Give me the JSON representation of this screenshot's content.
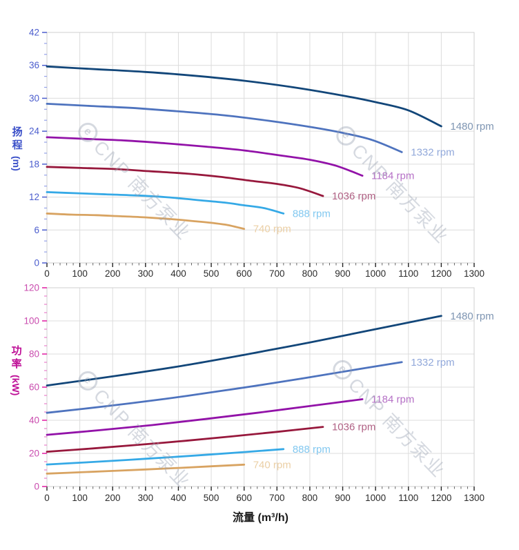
{
  "page": {
    "x_axis_title": "流量 (m³/h)"
  },
  "watermark": {
    "brand": "CNP 南方泵业",
    "logo_glyph": "e"
  },
  "chart_data": [
    {
      "type": "line",
      "name": "head-vs-flow",
      "grid": true,
      "x_axis": {
        "label": "流量 (m³/h)",
        "min": 0,
        "max": 1300,
        "major_step": 100,
        "minor_step": 20,
        "tick_label_color": "#2b2b2b",
        "major_tick_color": "#222222",
        "minor_tick_color": "#666666"
      },
      "y_axis": {
        "title": "扬程",
        "unit": "(m)",
        "min": 0,
        "max": 42,
        "major_step": 6,
        "minor_step": 2,
        "title_color": "#3A4FC8",
        "tick_label_color": "#4A5CCD",
        "major_tick_color": "#4A5CCD",
        "minor_tick_color": "#93A0E8"
      },
      "series": [
        {
          "label": "1480 rpm",
          "color": "#124679",
          "label_color": "#7E95B2",
          "points": [
            [
              0,
              35.8
            ],
            [
              150,
              35.3
            ],
            [
              300,
              34.8
            ],
            [
              450,
              34.1
            ],
            [
              600,
              33.2
            ],
            [
              750,
              32.0
            ],
            [
              900,
              30.5
            ],
            [
              1000,
              29.3
            ],
            [
              1100,
              27.8
            ],
            [
              1200,
              24.9
            ]
          ]
        },
        {
          "label": "1332 rpm",
          "color": "#4E73BE",
          "label_color": "#91A8DA",
          "points": [
            [
              0,
              29.0
            ],
            [
              135,
              28.6
            ],
            [
              270,
              28.2
            ],
            [
              405,
              27.6
            ],
            [
              540,
              26.9
            ],
            [
              675,
              25.9
            ],
            [
              810,
              24.7
            ],
            [
              900,
              23.7
            ],
            [
              990,
              22.4
            ],
            [
              1080,
              20.2
            ]
          ]
        },
        {
          "label": "1184 rpm",
          "color": "#9212A8",
          "label_color": "#B570C6",
          "points": [
            [
              0,
              22.9
            ],
            [
              120,
              22.6
            ],
            [
              240,
              22.3
            ],
            [
              360,
              21.8
            ],
            [
              480,
              21.2
            ],
            [
              600,
              20.5
            ],
            [
              720,
              19.5
            ],
            [
              800,
              18.8
            ],
            [
              880,
              17.7
            ],
            [
              960,
              15.9
            ]
          ]
        },
        {
          "label": "1036 rpm",
          "color": "#97183C",
          "label_color": "#B06184",
          "points": [
            [
              0,
              17.5
            ],
            [
              105,
              17.3
            ],
            [
              210,
              17.1
            ],
            [
              315,
              16.7
            ],
            [
              420,
              16.3
            ],
            [
              525,
              15.7
            ],
            [
              630,
              14.9
            ],
            [
              700,
              14.4
            ],
            [
              770,
              13.6
            ],
            [
              840,
              12.2
            ]
          ]
        },
        {
          "label": "888 rpm",
          "color": "#35A9E6",
          "label_color": "#82C8F0",
          "points": [
            [
              0,
              12.9
            ],
            [
              90,
              12.7
            ],
            [
              180,
              12.5
            ],
            [
              270,
              12.3
            ],
            [
              360,
              12.0
            ],
            [
              450,
              11.5
            ],
            [
              540,
              11.0
            ],
            [
              600,
              10.5
            ],
            [
              660,
              10.0
            ],
            [
              720,
              9.0
            ]
          ]
        },
        {
          "label": "740 rpm",
          "color": "#D8A361",
          "label_color": "#EBCFA5",
          "points": [
            [
              0,
              9.0
            ],
            [
              75,
              8.8
            ],
            [
              150,
              8.7
            ],
            [
              225,
              8.5
            ],
            [
              300,
              8.3
            ],
            [
              375,
              8.0
            ],
            [
              450,
              7.6
            ],
            [
              500,
              7.3
            ],
            [
              550,
              6.9
            ],
            [
              600,
              6.2
            ]
          ]
        }
      ]
    },
    {
      "type": "line",
      "name": "power-vs-flow",
      "grid": true,
      "x_axis": {
        "label": "流量 (m³/h)",
        "min": 0,
        "max": 1300,
        "major_step": 100,
        "minor_step": 20,
        "tick_label_color": "#2b2b2b",
        "major_tick_color": "#222222",
        "minor_tick_color": "#666666"
      },
      "y_axis": {
        "title": "功率",
        "unit": "(kW)",
        "min": 0,
        "max": 120,
        "major_step": 20,
        "minor_step": 5,
        "title_color": "#BE0D96",
        "tick_label_color": "#C94BAE",
        "major_tick_color": "#E018A0",
        "minor_tick_color": "#E87FCB"
      },
      "series": [
        {
          "label": "1480 rpm",
          "color": "#124679",
          "label_color": "#7E95B2",
          "points": [
            [
              0,
              61
            ],
            [
              200,
              66.5
            ],
            [
              400,
              72.5
            ],
            [
              600,
              79.5
            ],
            [
              800,
              87
            ],
            [
              1000,
              95
            ],
            [
              1200,
              103
            ]
          ]
        },
        {
          "label": "1332 rpm",
          "color": "#4E73BE",
          "label_color": "#91A8DA",
          "points": [
            [
              0,
              44.5
            ],
            [
              180,
              48.5
            ],
            [
              360,
              52.9
            ],
            [
              540,
              58.0
            ],
            [
              720,
              63.4
            ],
            [
              900,
              69.3
            ],
            [
              1080,
              75.1
            ]
          ]
        },
        {
          "label": "1184 rpm",
          "color": "#9212A8",
          "label_color": "#B570C6",
          "points": [
            [
              0,
              31.2
            ],
            [
              160,
              34.0
            ],
            [
              320,
              37.1
            ],
            [
              480,
              40.7
            ],
            [
              640,
              44.5
            ],
            [
              800,
              48.6
            ],
            [
              960,
              52.7
            ]
          ]
        },
        {
          "label": "1036 rpm",
          "color": "#97183C",
          "label_color": "#B06184",
          "points": [
            [
              0,
              21.0
            ],
            [
              140,
              23.0
            ],
            [
              280,
              25.2
            ],
            [
              420,
              27.6
            ],
            [
              560,
              30.2
            ],
            [
              700,
              33.0
            ],
            [
              840,
              36.0
            ]
          ]
        },
        {
          "label": "888 rpm",
          "color": "#35A9E6",
          "label_color": "#82C8F0",
          "points": [
            [
              0,
              13.3
            ],
            [
              120,
              14.6
            ],
            [
              240,
              16.0
            ],
            [
              360,
              17.5
            ],
            [
              480,
              19.1
            ],
            [
              600,
              20.8
            ],
            [
              720,
              22.6
            ]
          ]
        },
        {
          "label": "740 rpm",
          "color": "#D8A361",
          "label_color": "#EBCFA5",
          "points": [
            [
              0,
              7.8
            ],
            [
              100,
              8.6
            ],
            [
              200,
              9.4
            ],
            [
              300,
              10.3
            ],
            [
              400,
              11.2
            ],
            [
              500,
              12.2
            ],
            [
              600,
              13.2
            ]
          ]
        }
      ]
    }
  ]
}
